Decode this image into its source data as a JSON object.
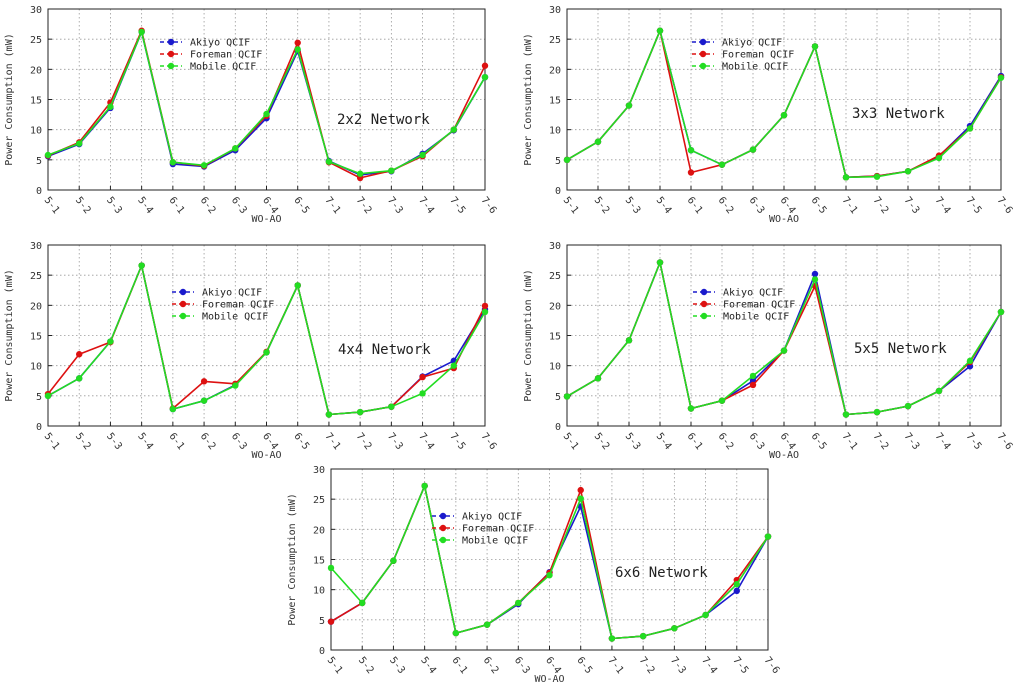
{
  "chart_data": [
    {
      "type": "line",
      "title": "2x2 Network",
      "xlabel": "WO-AO",
      "ylabel": "Power Consumption (mW)",
      "ylim": [
        0,
        30
      ],
      "grid": true,
      "legend": "top-left",
      "categories": [
        "5-1",
        "5-2",
        "5-3",
        "5-4",
        "6-1",
        "6-2",
        "6-3",
        "6-4",
        "6-5",
        "7-1",
        "7-2",
        "7-3",
        "7-4",
        "7-5",
        "7-6"
      ],
      "series": [
        {
          "name": "Akiyo QCIF",
          "color": "#1a1acc",
          "values": [
            5.6,
            7.6,
            13.6,
            26.2,
            4.3,
            3.9,
            6.6,
            11.9,
            23.0,
            4.8,
            2.5,
            3.1,
            6.0,
            9.9,
            18.7
          ]
        },
        {
          "name": "Foreman QCIF",
          "color": "#dd1111",
          "values": [
            5.7,
            7.9,
            14.5,
            26.4,
            4.6,
            4.0,
            6.9,
            12.3,
            24.4,
            4.6,
            2.0,
            3.2,
            5.6,
            10.0,
            20.6
          ]
        },
        {
          "name": "Mobile QCIF",
          "color": "#22dd22",
          "values": [
            5.8,
            7.7,
            13.8,
            26.2,
            4.6,
            4.1,
            6.9,
            12.6,
            23.3,
            4.7,
            2.7,
            3.2,
            5.8,
            10.0,
            18.7
          ]
        }
      ]
    },
    {
      "type": "line",
      "title": "3x3 Network",
      "xlabel": "WO-AO",
      "ylabel": "Power Consumption (mW)",
      "ylim": [
        0,
        30
      ],
      "grid": true,
      "legend": "top-left",
      "categories": [
        "5-1",
        "5-2",
        "5-3",
        "5-4",
        "6-1",
        "6-2",
        "6-3",
        "6-4",
        "6-5",
        "7-1",
        "7-2",
        "7-3",
        "7-4",
        "7-5",
        "7-6"
      ],
      "series": [
        {
          "name": "Akiyo QCIF",
          "color": "#1a1acc",
          "values": [
            5.0,
            8.0,
            14.0,
            26.4,
            6.6,
            4.2,
            6.7,
            12.4,
            23.8,
            2.1,
            2.3,
            3.1,
            5.6,
            10.6,
            18.9
          ]
        },
        {
          "name": "Foreman QCIF",
          "color": "#dd1111",
          "values": [
            5.0,
            8.0,
            14.0,
            26.4,
            2.9,
            4.2,
            6.7,
            12.4,
            23.8,
            2.1,
            2.3,
            3.1,
            5.7,
            10.2,
            18.7
          ]
        },
        {
          "name": "Mobile QCIF",
          "color": "#22dd22",
          "values": [
            5.0,
            8.0,
            14.0,
            26.4,
            6.6,
            4.2,
            6.7,
            12.4,
            23.8,
            2.1,
            2.2,
            3.1,
            5.3,
            10.2,
            18.6
          ]
        }
      ]
    },
    {
      "type": "line",
      "title": "4x4 Network",
      "xlabel": "WO-AO",
      "ylabel": "Power Consumption (mW)",
      "ylim": [
        0,
        30
      ],
      "grid": true,
      "legend": "top-left",
      "categories": [
        "5-1",
        "5-2",
        "5-3",
        "5-4",
        "6-1",
        "6-2",
        "6-3",
        "6-4",
        "6-5",
        "7-1",
        "7-2",
        "7-3",
        "7-4",
        "7-5",
        "7-6"
      ],
      "series": [
        {
          "name": "Akiyo QCIF",
          "color": "#1a1acc",
          "values": [
            5.0,
            7.9,
            14.0,
            26.6,
            2.8,
            4.2,
            6.8,
            12.2,
            23.3,
            1.9,
            2.3,
            3.2,
            8.2,
            10.8,
            19.3
          ]
        },
        {
          "name": "Foreman QCIF",
          "color": "#dd1111",
          "values": [
            5.3,
            11.9,
            13.9,
            26.6,
            2.9,
            7.4,
            7.0,
            12.3,
            23.3,
            1.9,
            2.3,
            3.2,
            8.1,
            9.6,
            19.9
          ]
        },
        {
          "name": "Mobile QCIF",
          "color": "#22dd22",
          "values": [
            5.0,
            7.9,
            14.0,
            26.6,
            2.8,
            4.2,
            6.7,
            12.2,
            23.3,
            1.9,
            2.3,
            3.2,
            5.4,
            10.0,
            18.9
          ]
        }
      ]
    },
    {
      "type": "line",
      "title": "5x5 Network",
      "xlabel": "WO-AO",
      "ylabel": "Power Consumption (mW)",
      "ylim": [
        0,
        30
      ],
      "grid": true,
      "legend": "top-left",
      "categories": [
        "5-1",
        "5-2",
        "5-3",
        "5-4",
        "6-1",
        "6-2",
        "6-3",
        "6-4",
        "6-5",
        "7-1",
        "7-2",
        "7-3",
        "7-4",
        "7-5",
        "7-6"
      ],
      "series": [
        {
          "name": "Akiyo QCIF",
          "color": "#1a1acc",
          "values": [
            4.9,
            7.9,
            14.2,
            27.1,
            2.9,
            4.2,
            7.5,
            12.5,
            25.2,
            1.9,
            2.3,
            3.3,
            5.8,
            9.9,
            18.9
          ]
        },
        {
          "name": "Foreman QCIF",
          "color": "#dd1111",
          "values": [
            4.9,
            7.9,
            14.2,
            27.1,
            2.9,
            4.2,
            6.8,
            12.5,
            23.2,
            1.9,
            2.3,
            3.3,
            5.8,
            10.6,
            18.9
          ]
        },
        {
          "name": "Mobile QCIF",
          "color": "#22dd22",
          "values": [
            4.9,
            7.9,
            14.2,
            27.1,
            2.9,
            4.2,
            8.3,
            12.5,
            24.3,
            1.9,
            2.3,
            3.3,
            5.8,
            10.8,
            18.9
          ]
        }
      ]
    },
    {
      "type": "line",
      "title": "6x6 Network",
      "xlabel": "WO-AO",
      "ylabel": "Power Consumption (mW)",
      "ylim": [
        0,
        30
      ],
      "grid": true,
      "legend": "top-left",
      "categories": [
        "5-1",
        "5-2",
        "5-3",
        "5-4",
        "6-1",
        "6-2",
        "6-3",
        "6-4",
        "6-5",
        "7-1",
        "7-2",
        "7-3",
        "7-4",
        "7-5",
        "7-6"
      ],
      "series": [
        {
          "name": "Akiyo QCIF",
          "color": "#1a1acc",
          "values": [
            4.7,
            7.8,
            14.8,
            27.2,
            2.8,
            4.2,
            7.6,
            12.9,
            23.8,
            1.9,
            2.3,
            3.6,
            5.8,
            9.8,
            18.8
          ]
        },
        {
          "name": "Foreman QCIF",
          "color": "#dd1111",
          "values": [
            4.7,
            7.8,
            14.8,
            27.2,
            2.8,
            4.2,
            7.8,
            12.8,
            26.5,
            1.9,
            2.3,
            3.6,
            5.8,
            11.6,
            18.8
          ]
        },
        {
          "name": "Mobile QCIF",
          "color": "#22dd22",
          "values": [
            13.6,
            7.8,
            14.8,
            27.2,
            2.8,
            4.2,
            7.8,
            12.4,
            25.1,
            1.9,
            2.3,
            3.6,
            5.8,
            10.9,
            18.8
          ]
        }
      ]
    }
  ]
}
